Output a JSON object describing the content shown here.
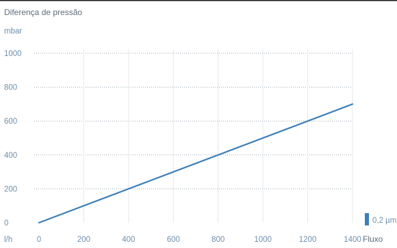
{
  "chart_data": {
    "type": "line",
    "title": "Diferença de pressão",
    "ylabel": "mbar",
    "xlabel": "Fluxo",
    "xunit": "l/h",
    "x_ticks": [
      0,
      200,
      400,
      600,
      800,
      1000,
      1200,
      1400
    ],
    "y_ticks": [
      0,
      200,
      400,
      600,
      800,
      1000
    ],
    "xlim": [
      0,
      1400
    ],
    "ylim": [
      0,
      1000
    ],
    "grid": true,
    "legend_placement": "bottom-right",
    "series": [
      {
        "name": "0,2 µm",
        "color": "#3c7fb8",
        "x": [
          0,
          1400
        ],
        "y": [
          0,
          700
        ]
      }
    ]
  }
}
